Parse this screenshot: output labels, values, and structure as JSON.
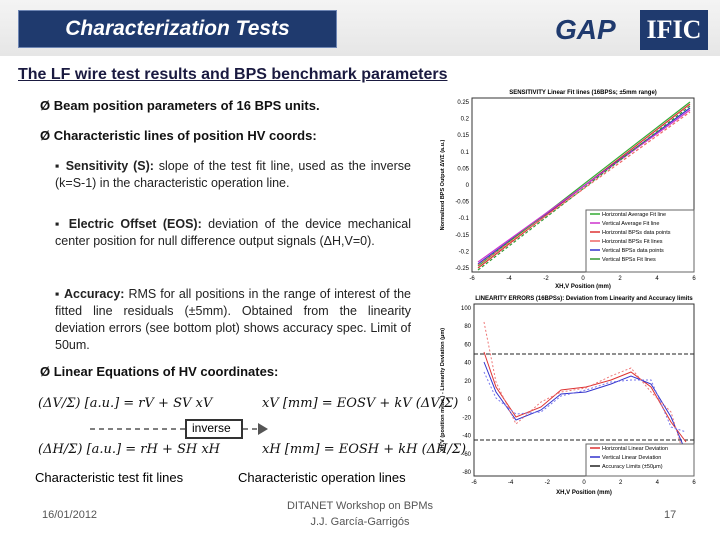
{
  "header": {
    "title": "Characterization Tests",
    "logo_gap": "GAP",
    "logo_ific": "IFIC"
  },
  "subtitle": "The LF wire test results and BPS benchmark parameters",
  "bullets": [
    {
      "text": "Beam position parameters of 16 BPS units."
    },
    {
      "text": "Characteristic lines of position HV coords:",
      "items": [
        {
          "term": "Sensitivity (S):",
          "text": "slope of the test fit line, used as the inverse (k=S-1) in the characteristic operation line."
        },
        {
          "term": "Electric Offset (EOS):",
          "text": "deviation of the device mechanical center position for null difference output signals (ΔH,V=0)."
        },
        {
          "term": "Accuracy:",
          "text": "RMS for all positions in the range of interest of the fitted line residuals (±5mm). Obtained from the linearity deviation errors (see bottom plot) shows accuracy spec. Limit of 50um."
        }
      ]
    },
    {
      "text": "Linear Equations of HV coordinates:"
    }
  ],
  "equations": {
    "fit_v": "(ΔV/Σ) [a.u.] = rV + SV xV",
    "op_v": "xV [mm] = EOSV + kV (ΔV/Σ)",
    "fit_h": "(ΔH/Σ) [a.u.] = rH + SH xH",
    "op_h": "xH [mm] = EOSH + kH (ΔH/Σ)",
    "inverse": "inverse",
    "caption_fit": "Characteristic test fit lines",
    "caption_op": "Characteristic operation lines"
  },
  "plots": [
    {
      "title": "SENSITIVITY Linear Fit lines (16BPSs; ±5mm range)",
      "ylabel": "Normalized BPS Output ΔV/Σ (a.u.)",
      "xlabel": "XH,V Position (mm)",
      "yticks": [
        "0.25",
        "0.2",
        "0.15",
        "0.1",
        "0.05",
        "0",
        "-0.05",
        "-0.1",
        "-0.15",
        "-0.2",
        "-0.25"
      ],
      "xticks": [
        "-6",
        "-4",
        "-2",
        "0",
        "2",
        "4",
        "6"
      ],
      "legend": [
        "Horizontal Average Fit line",
        "Vertical Average Fit line",
        "Horizontal BPSs data points",
        "Horizontal BPSs Fit lines",
        "Vertical BPSs data points",
        "Vertical BPSs Fit lines"
      ]
    },
    {
      "title": "LINEARITY ERRORS (16BPSs): Deviation from Linearity and Accuracy limits",
      "ylabel": "XH,V (position meas.) - Linearity Deviation (μm)",
      "xlabel": "XH,V Position (mm)",
      "yticks": [
        "100",
        "80",
        "60",
        "40",
        "20",
        "0",
        "-20",
        "-40",
        "-60",
        "-80"
      ],
      "xticks": [
        "-6",
        "-4",
        "-2",
        "0",
        "2",
        "4",
        "6"
      ],
      "legend": [
        "Horizontal Linear Deviation",
        "Vertical Linear Deviation",
        "Accuracy Limits (±50μm)"
      ]
    }
  ],
  "footer": {
    "date": "16/01/2012",
    "event": "DITANET Workshop on BPMs",
    "author": "J.J. García-Garrigós",
    "page": "17"
  }
}
